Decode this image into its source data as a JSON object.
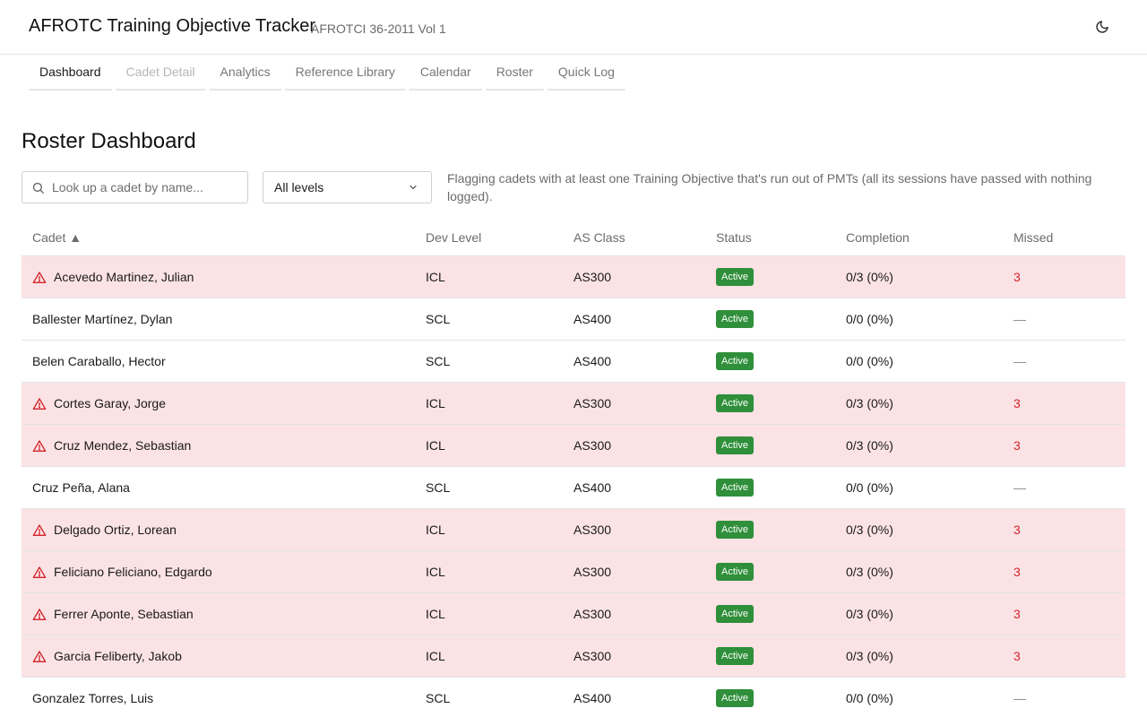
{
  "header": {
    "title": "AFROTC Training Objective Tracker",
    "subtitle": "AFROTCI 36-2011 Vol 1",
    "theme_icon": "moon-icon"
  },
  "tabs": [
    {
      "label": "Dashboard",
      "state": "active"
    },
    {
      "label": "Cadet Detail",
      "state": "disabled"
    },
    {
      "label": "Analytics",
      "state": "normal"
    },
    {
      "label": "Reference Library",
      "state": "normal"
    },
    {
      "label": "Calendar",
      "state": "normal"
    },
    {
      "label": "Roster",
      "state": "normal"
    },
    {
      "label": "Quick Log",
      "state": "normal"
    }
  ],
  "main": {
    "title": "Roster Dashboard",
    "search": {
      "placeholder": "Look up a cadet by name...",
      "value": ""
    },
    "level_filter": {
      "selected": "All levels"
    },
    "flag_note": "Flagging cadets with at least one Training Objective that's run out of PMTs (all its sessions have passed with nothing logged)."
  },
  "table": {
    "columns": {
      "cadet": "Cadet ▲",
      "dev_level": "Dev Level",
      "as_class": "AS Class",
      "status": "Status",
      "completion": "Completion",
      "missed": "Missed"
    },
    "rows": [
      {
        "name": "Acevedo Martinez, Julian",
        "dev_level": "ICL",
        "as_class": "AS300",
        "status": "Active",
        "completion": "0/3 (0%)",
        "missed": "3",
        "flagged": true
      },
      {
        "name": "Ballester Martínez, Dylan",
        "dev_level": "SCL",
        "as_class": "AS400",
        "status": "Active",
        "completion": "0/0 (0%)",
        "missed": "—",
        "flagged": false
      },
      {
        "name": "Belen Caraballo, Hector",
        "dev_level": "SCL",
        "as_class": "AS400",
        "status": "Active",
        "completion": "0/0 (0%)",
        "missed": "—",
        "flagged": false
      },
      {
        "name": "Cortes Garay, Jorge",
        "dev_level": "ICL",
        "as_class": "AS300",
        "status": "Active",
        "completion": "0/3 (0%)",
        "missed": "3",
        "flagged": true
      },
      {
        "name": "Cruz Mendez, Sebastian",
        "dev_level": "ICL",
        "as_class": "AS300",
        "status": "Active",
        "completion": "0/3 (0%)",
        "missed": "3",
        "flagged": true
      },
      {
        "name": "Cruz Peña, Alana",
        "dev_level": "SCL",
        "as_class": "AS400",
        "status": "Active",
        "completion": "0/0 (0%)",
        "missed": "—",
        "flagged": false
      },
      {
        "name": "Delgado Ortiz, Lorean",
        "dev_level": "ICL",
        "as_class": "AS300",
        "status": "Active",
        "completion": "0/3 (0%)",
        "missed": "3",
        "flagged": true
      },
      {
        "name": "Feliciano Feliciano, Edgardo",
        "dev_level": "ICL",
        "as_class": "AS300",
        "status": "Active",
        "completion": "0/3 (0%)",
        "missed": "3",
        "flagged": true
      },
      {
        "name": "Ferrer Aponte, Sebastian",
        "dev_level": "ICL",
        "as_class": "AS300",
        "status": "Active",
        "completion": "0/3 (0%)",
        "missed": "3",
        "flagged": true
      },
      {
        "name": "Garcia Feliberty, Jakob",
        "dev_level": "ICL",
        "as_class": "AS300",
        "status": "Active",
        "completion": "0/3 (0%)",
        "missed": "3",
        "flagged": true
      },
      {
        "name": "Gonzalez Torres, Luis",
        "dev_level": "SCL",
        "as_class": "AS400",
        "status": "Active",
        "completion": "0/0 (0%)",
        "missed": "—",
        "flagged": false
      }
    ]
  },
  "colors": {
    "flag_row_bg": "#fbe3e5",
    "flag_red": "#d3222a",
    "status_active_green": "#2f8f3a"
  },
  "icons": {
    "search": "search-icon",
    "dropdown": "chevron-down-icon",
    "flag": "warning-triangle-icon"
  }
}
